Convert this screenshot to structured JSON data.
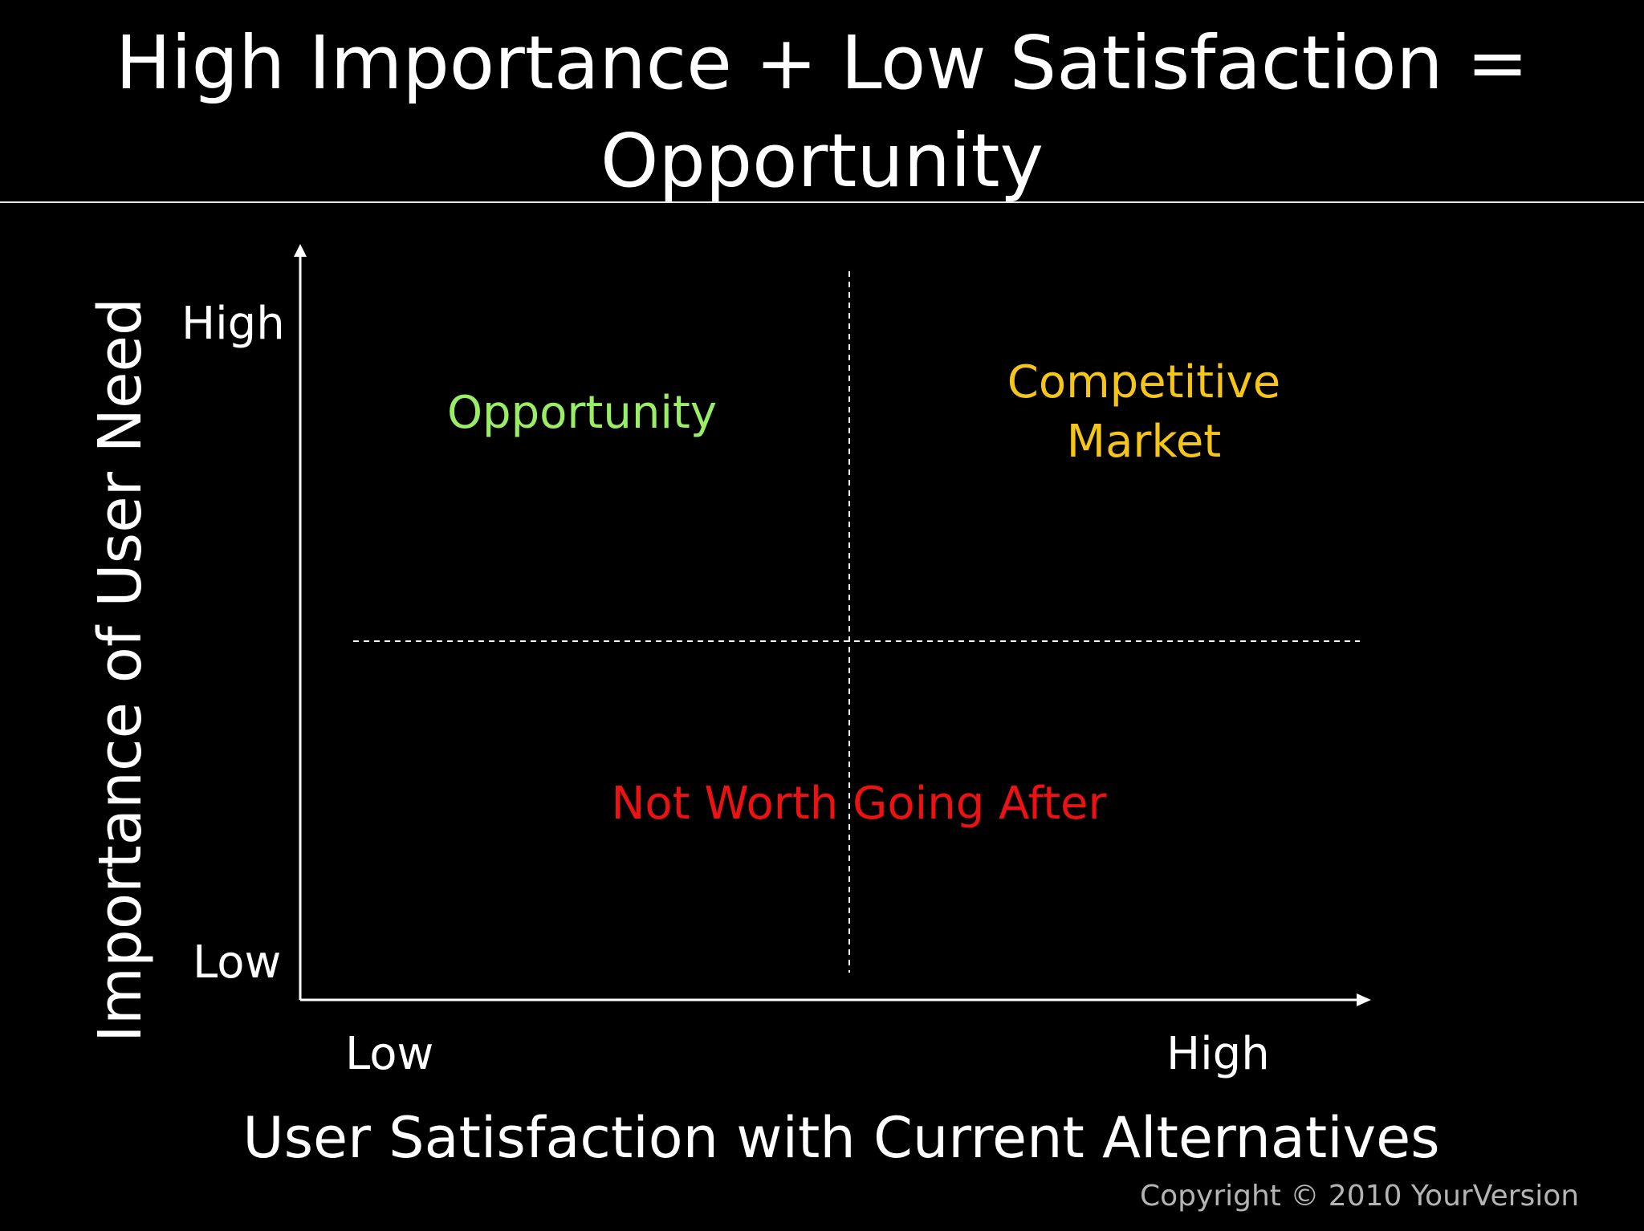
{
  "title": {
    "line1": "High Importance + Low Satisfaction =",
    "line2": "Opportunity"
  },
  "axes": {
    "y_label": "Importance of User Need",
    "y_tick_high": "High",
    "y_tick_low": "Low",
    "x_label": "User Satisfaction with Current Alternatives",
    "x_tick_low": "Low",
    "x_tick_high": "High"
  },
  "quadrants": {
    "opportunity": "Opportunity",
    "competitive_line1": "Competitive",
    "competitive_line2": "Market",
    "not_worth": "Not Worth Going After"
  },
  "copyright": "Copyright © 2010 YourVersion",
  "colors": {
    "background": "#000000",
    "text": "#ffffff",
    "opportunity": "#99ee66",
    "competitive": "#f5c518",
    "not_worth": "#ee1111",
    "copyright": "#b4b4b4"
  }
}
